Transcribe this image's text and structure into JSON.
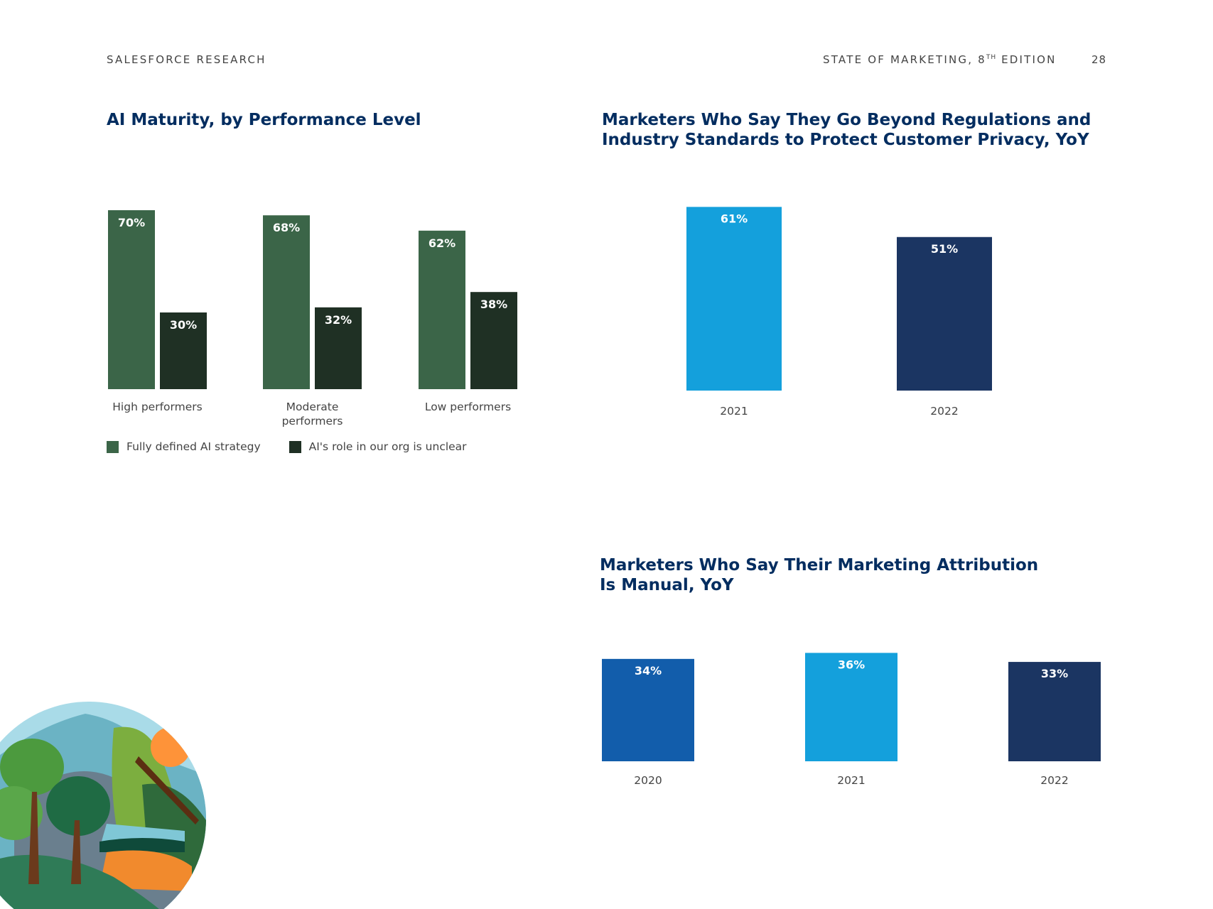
{
  "header": {
    "left": "SALESFORCE RESEARCH",
    "right_main": "STATE OF MARKETING, 8",
    "right_sup": "TH",
    "right_tail": " EDITION",
    "page_number": "28"
  },
  "colors": {
    "title": "#032d60",
    "dark_green": "#3b6548",
    "black_green": "#1f3024",
    "light_blue": "#14a0dc",
    "mid_blue": "#125dab",
    "navy": "#1b3562"
  },
  "chart_data": [
    {
      "type": "bar",
      "title": [
        "AI Maturity, by Performance Level"
      ],
      "categories": [
        [
          "High performers"
        ],
        [
          "Moderate",
          "performers"
        ],
        [
          "Low performers"
        ]
      ],
      "series": [
        {
          "name": "Fully defined AI strategy",
          "values": [
            70,
            68,
            62
          ],
          "labels": [
            "70%",
            "68%",
            "62%"
          ],
          "color": "#3b6548"
        },
        {
          "name": "AI's role in our org is unclear",
          "values": [
            30,
            32,
            38
          ],
          "labels": [
            "30%",
            "32%",
            "38%"
          ],
          "color": "#1f3024"
        }
      ],
      "ylim": [
        0,
        100
      ],
      "legend": "bottom-left",
      "grid": false
    },
    {
      "type": "bar",
      "title": [
        "Marketers Who Say They Go Beyond Regulations and",
        "Industry Standards to Protect Customer Privacy, YoY"
      ],
      "categories": [
        "2021",
        "2022"
      ],
      "values": [
        61,
        51
      ],
      "labels": [
        "61%",
        "51%"
      ],
      "colors": [
        "#14a0dc",
        "#1b3562"
      ],
      "ylim": [
        0,
        100
      ],
      "grid": false
    },
    {
      "type": "bar",
      "title": [
        "Marketers Who Say Their Marketing Attribution",
        "Is Manual, YoY"
      ],
      "categories": [
        "2020",
        "2021",
        "2022"
      ],
      "values": [
        34,
        36,
        33
      ],
      "labels": [
        "34%",
        "36%",
        "33%"
      ],
      "colors": [
        "#125dab",
        "#14a0dc",
        "#1b3562"
      ],
      "ylim": [
        0,
        100
      ],
      "grid": false
    }
  ]
}
